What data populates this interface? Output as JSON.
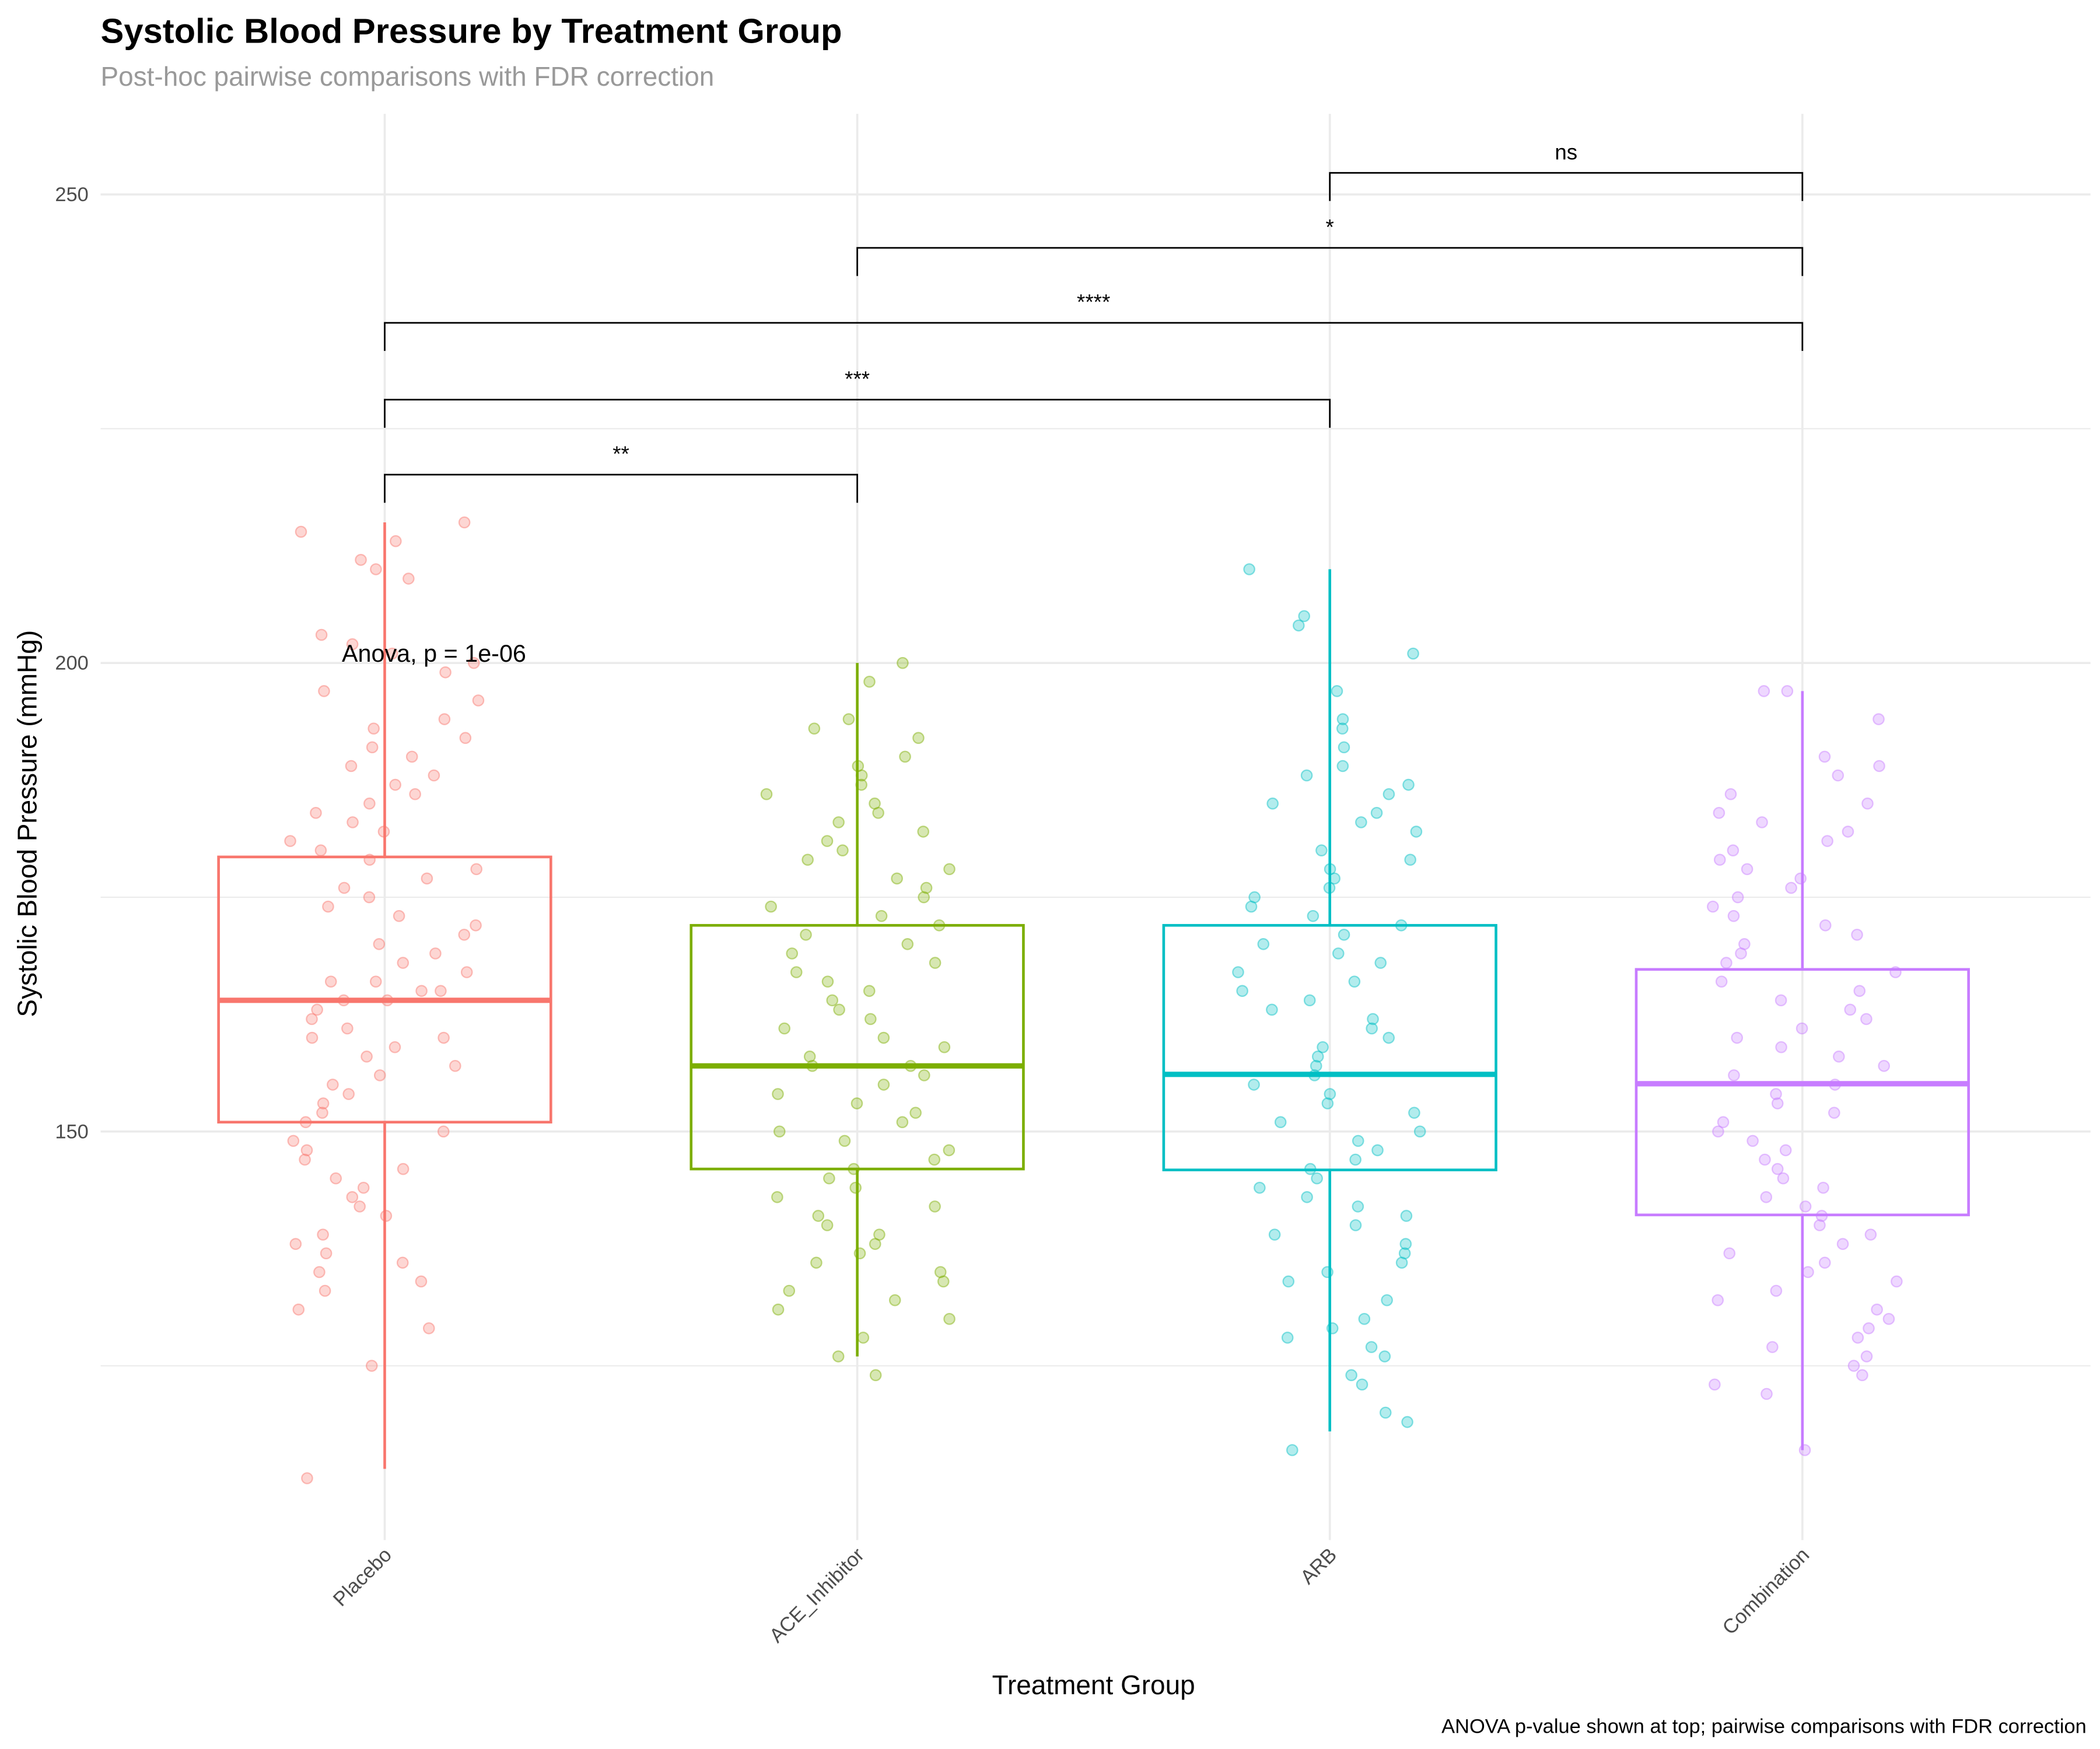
{
  "chart_data": {
    "type": "box",
    "title": "Systolic Blood Pressure by Treatment Group",
    "subtitle": "Post-hoc pairwise comparisons with FDR correction",
    "xlabel": "Treatment Group",
    "ylabel": "Systolic Blood Pressure (mmHg)",
    "caption": "ANOVA p-value shown at top; pairwise comparisons with FDR correction",
    "ylim": [
      106.4,
      258.6
    ],
    "y_ticks": [
      150,
      200,
      250
    ],
    "y_minor_ticks": [
      125,
      175,
      225
    ],
    "grid": true,
    "categories": [
      "Placebo",
      "ACE_Inhibitor",
      "ARB",
      "Combination"
    ],
    "colors": [
      "#F8766D",
      "#7CAE00",
      "#00BFC4",
      "#C77CFF"
    ],
    "boxes": [
      {
        "group": "Placebo",
        "whisker_low": 114,
        "q1": 151,
        "median": 164,
        "q3": 179.3,
        "whisker_high": 215
      },
      {
        "group": "ACE_Inhibitor",
        "whisker_low": 126,
        "q1": 146,
        "median": 157,
        "q3": 172,
        "whisker_high": 200
      },
      {
        "group": "ARB",
        "whisker_low": 118,
        "q1": 145.9,
        "median": 156.1,
        "q3": 172,
        "whisker_high": 210
      },
      {
        "group": "Combination",
        "whisker_low": 116,
        "q1": 141.1,
        "median": 155.1,
        "q3": 167.3,
        "whisker_high": 197
      }
    ],
    "points": [
      [
        215,
        214,
        213,
        211,
        210,
        209,
        203,
        202,
        201,
        200,
        199,
        197,
        196,
        194,
        193,
        192,
        191,
        190,
        189,
        188,
        187,
        186,
        185,
        184,
        183,
        182,
        181,
        180,
        179,
        178,
        177,
        176,
        175,
        174,
        173,
        172,
        171,
        170,
        169,
        168,
        167,
        166,
        166,
        165,
        165,
        164,
        164,
        163,
        162,
        161,
        160,
        160,
        159,
        158,
        157,
        156,
        155,
        154,
        153,
        152,
        151,
        150,
        149,
        148,
        147,
        146,
        145,
        144,
        143,
        142,
        141,
        139,
        138,
        137,
        136,
        135,
        134,
        133,
        131,
        129,
        125,
        113
      ],
      [
        200,
        198,
        194,
        193,
        192,
        190,
        189,
        188,
        187,
        186,
        185,
        184,
        183,
        182,
        181,
        180,
        179,
        178,
        177,
        176,
        175,
        174,
        173,
        172,
        171,
        170,
        169,
        168,
        167,
        166,
        165,
        164,
        163,
        162,
        161,
        160,
        159,
        158,
        157,
        157,
        156,
        155,
        154,
        153,
        152,
        151,
        150,
        149,
        148,
        147,
        146,
        145,
        144,
        143,
        142,
        141,
        140,
        139,
        138,
        137,
        136,
        135,
        134,
        133,
        132,
        131,
        130,
        128,
        126,
        124
      ],
      [
        210,
        205,
        204,
        201,
        197,
        194,
        193,
        191,
        189,
        188,
        187,
        186,
        185,
        184,
        183,
        182,
        180,
        179,
        178,
        177,
        176,
        175,
        174,
        173,
        172,
        171,
        170,
        169,
        168,
        167,
        166,
        165,
        164,
        163,
        162,
        161,
        160,
        159,
        158,
        157,
        156,
        155,
        154,
        153,
        152,
        151,
        150,
        149,
        148,
        147,
        146,
        145,
        144,
        143,
        142,
        141,
        140,
        139,
        138,
        137,
        136,
        135,
        134,
        132,
        130,
        129,
        128,
        127,
        126,
        124,
        123,
        120,
        119,
        116
      ],
      [
        197,
        197,
        194,
        190,
        189,
        188,
        186,
        185,
        184,
        183,
        182,
        181,
        180,
        179,
        178,
        177,
        176,
        175,
        174,
        173,
        172,
        171,
        170,
        169,
        168,
        167,
        166,
        165,
        164,
        163,
        162,
        161,
        160,
        159,
        158,
        157,
        156,
        155,
        154,
        153,
        152,
        151,
        150,
        149,
        148,
        147,
        146,
        145,
        144,
        143,
        142,
        141,
        140,
        139,
        138,
        137,
        136,
        135,
        134,
        133,
        132,
        131,
        130,
        129,
        128,
        127,
        126,
        125,
        124,
        123,
        122,
        116
      ]
    ],
    "comparisons": [
      {
        "from": "Placebo",
        "to": "ACE_Inhibitor",
        "y": 220.1,
        "label": "**"
      },
      {
        "from": "Placebo",
        "to": "ARB",
        "y": 228.1,
        "label": "***"
      },
      {
        "from": "Placebo",
        "to": "Combination",
        "y": 236.3,
        "label": "****"
      },
      {
        "from": "ACE_Inhibitor",
        "to": "Combination",
        "y": 244.3,
        "label": "*"
      },
      {
        "from": "ARB",
        "to": "Combination",
        "y": 252.3,
        "label": "ns"
      }
    ],
    "annotation": {
      "text": "Anova, p = 1e-06",
      "y": 201
    }
  }
}
